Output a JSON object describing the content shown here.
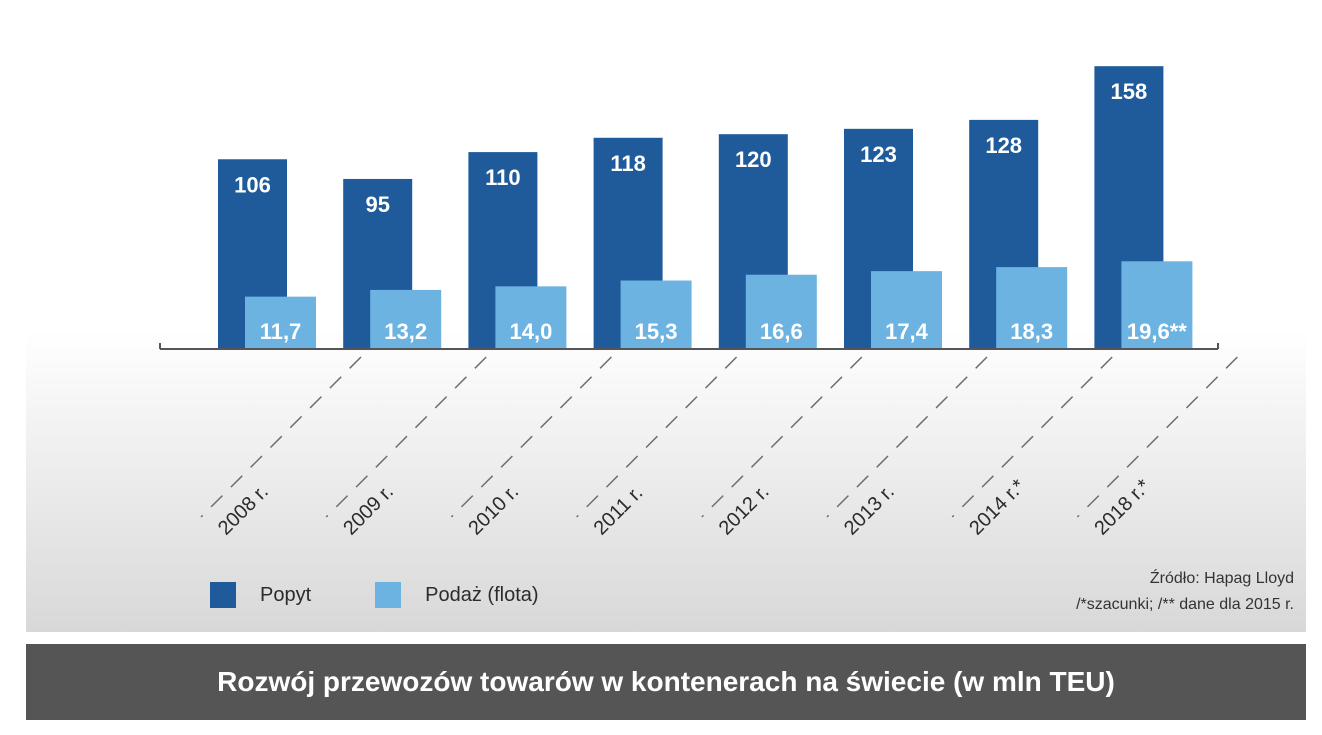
{
  "chart_data": {
    "type": "bar",
    "title": "Rozwój przewozów towarów w kontenerach na świecie (w mln TEU)",
    "categories": [
      "2008 r.",
      "2009 r.",
      "2010 r.",
      "2011 r.",
      "2012 r.",
      "2013 r.",
      "2014 r.*",
      "2018 r.*"
    ],
    "series": [
      {
        "name": "Popyt",
        "color": "#1f5b9b",
        "values": [
          106,
          95,
          110,
          118,
          120,
          123,
          128,
          158
        ],
        "labels": [
          "106",
          "95",
          "110",
          "118",
          "120",
          "123",
          "128",
          "158"
        ]
      },
      {
        "name": "Podaż (flota)",
        "color": "#6db3e2",
        "values": [
          11.7,
          13.2,
          14.0,
          15.3,
          16.6,
          17.4,
          18.3,
          19.6
        ],
        "labels": [
          "11,7",
          "13,2",
          "14,0",
          "15,3",
          "16,6",
          "17,4",
          "18,3",
          "19,6**"
        ]
      }
    ],
    "xlabel": "",
    "ylabel": "",
    "grid": false,
    "legend": "bottom-left"
  },
  "source": {
    "line1": "Źródło: Hapag Lloyd",
    "line2": "/*szacunki; /** dane dla 2015 r."
  }
}
